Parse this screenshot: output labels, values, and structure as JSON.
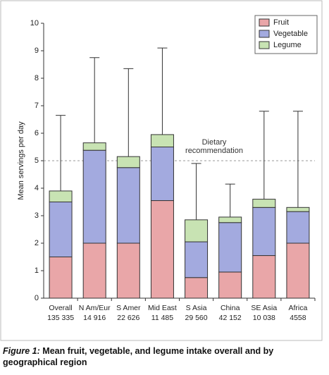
{
  "chart_data": {
    "type": "stacked_bar",
    "y_label": "Mean servings per day",
    "categories": [
      "Overall",
      "N Am/Eur",
      "S Amer",
      "Mid East",
      "S Asia",
      "China",
      "SE Asia",
      "Africa"
    ],
    "sample_sizes": [
      "135 335",
      "14 916",
      "22 626",
      "11 485",
      "29 560",
      "42 152",
      "10 038",
      "4558"
    ],
    "series": [
      {
        "name": "Fruit",
        "color": "#e9a6a8",
        "values": [
          1.5,
          2.0,
          2.0,
          3.55,
          0.75,
          0.95,
          1.55,
          2.0
        ]
      },
      {
        "name": "Vegetable",
        "color": "#a3aadf",
        "values": [
          2.0,
          3.38,
          2.75,
          1.95,
          1.3,
          1.8,
          1.75,
          1.15
        ]
      },
      {
        "name": "Legume",
        "color": "#c8e3b3",
        "values": [
          0.4,
          0.27,
          0.4,
          0.45,
          0.8,
          0.2,
          0.3,
          0.15
        ]
      }
    ],
    "errors": [
      2.75,
      3.1,
      3.2,
      3.15,
      2.05,
      1.2,
      3.2,
      3.5
    ],
    "ylim": [
      0,
      10
    ],
    "yticks": [
      0,
      1,
      2,
      3,
      4,
      5,
      6,
      7,
      8,
      9,
      10
    ],
    "annotation": {
      "text": "Dietary recommendation",
      "value": 5
    },
    "legend": "upper right",
    "figure_label": "Figure 1:",
    "caption": "Mean fruit, vegetable, and legume intake overall and by geographical region"
  }
}
